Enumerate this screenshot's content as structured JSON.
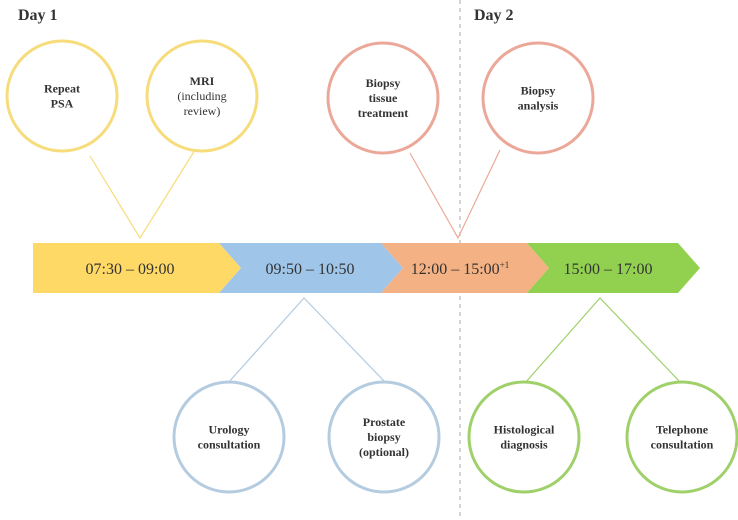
{
  "days": {
    "day1": "Day 1",
    "day2": "Day 2"
  },
  "timeline": [
    {
      "label": "07:30 – 09:00",
      "sup": "",
      "color": "#FFD966"
    },
    {
      "label": "09:50 – 10:50",
      "sup": "",
      "color": "#9FC5E8"
    },
    {
      "label": "12:00 – 15:00",
      "sup": "+1",
      "color": "#F4B183"
    },
    {
      "label": "15:00 – 17:00",
      "sup": "",
      "color": "#92D050"
    }
  ],
  "top_circles": [
    {
      "lines": [
        "Repeat",
        "PSA"
      ],
      "bold": [
        true,
        true
      ],
      "stroke": "#F6DC7A"
    },
    {
      "lines": [
        "MRI",
        "(including",
        "review)"
      ],
      "bold": [
        true,
        false,
        false
      ],
      "stroke": "#F6DC7A"
    },
    {
      "lines": [
        "Biopsy",
        "tissue",
        "treatment"
      ],
      "bold": [
        true,
        true,
        true
      ],
      "stroke": "#EBA898"
    },
    {
      "lines": [
        "Biopsy",
        "analysis"
      ],
      "bold": [
        true,
        true
      ],
      "stroke": "#EBA898"
    }
  ],
  "bottom_circles": [
    {
      "lines": [
        "Urology",
        "consultation"
      ],
      "bold": [
        true,
        true
      ],
      "stroke": "#B4CBE0"
    },
    {
      "lines": [
        "Prostate",
        "biopsy",
        "(optional)"
      ],
      "bold": [
        true,
        true,
        true
      ],
      "stroke": "#B4CBE0"
    },
    {
      "lines": [
        "Histological",
        "diagnosis"
      ],
      "bold": [
        true,
        true
      ],
      "stroke": "#9FD06A"
    },
    {
      "lines": [
        "Telephone",
        "consultation"
      ],
      "bold": [
        true,
        true
      ],
      "stroke": "#9FD06A"
    }
  ],
  "connector_colors": {
    "day1_top": "#F6DC7A",
    "day2_top": "#EBA898",
    "seg2_bottom": "#B4CBE0",
    "seg4_bottom": "#9FD06A"
  },
  "divider_color": "#AAAAAA"
}
